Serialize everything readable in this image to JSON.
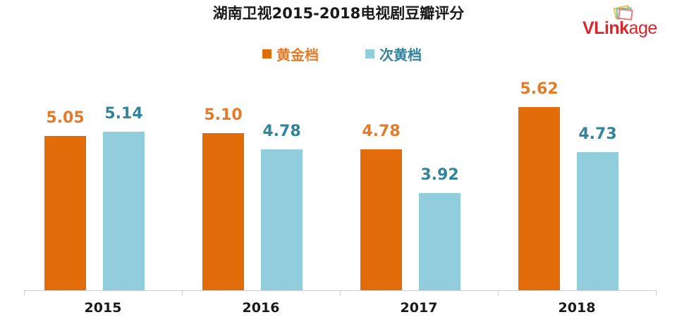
{
  "header": {
    "title": "湖南卫视2015-2018电视剧豆瓣评分",
    "logo": {
      "bold": "VLink",
      "light": "age",
      "icon": "stacked-cards-icon"
    }
  },
  "colors": {
    "series1": "#e36c0a",
    "series2": "#92cddc",
    "series1_label": "#e37b2a",
    "series2_label": "#31849b"
  },
  "legend": [
    {
      "label": "黄金档",
      "color": "#e36c0a"
    },
    {
      "label": "次黄档",
      "color": "#92cddc"
    }
  ],
  "chart_data": {
    "type": "bar",
    "title": "湖南卫视2015-2018电视剧豆瓣评分",
    "categories": [
      "2015",
      "2016",
      "2017",
      "2018"
    ],
    "series": [
      {
        "name": "黄金档",
        "values": [
          5.05,
          5.1,
          4.78,
          5.62
        ],
        "labels": [
          "5.05",
          "5.10",
          "4.78",
          "5.62"
        ]
      },
      {
        "name": "次黄档",
        "values": [
          5.14,
          4.78,
          3.92,
          4.73
        ],
        "labels": [
          "5.14",
          "4.78",
          "3.92",
          "4.73"
        ]
      }
    ],
    "xlabel": "",
    "ylabel": "",
    "ylim": [
      2,
      6.35
    ],
    "grid": false,
    "legend_position": "top"
  }
}
